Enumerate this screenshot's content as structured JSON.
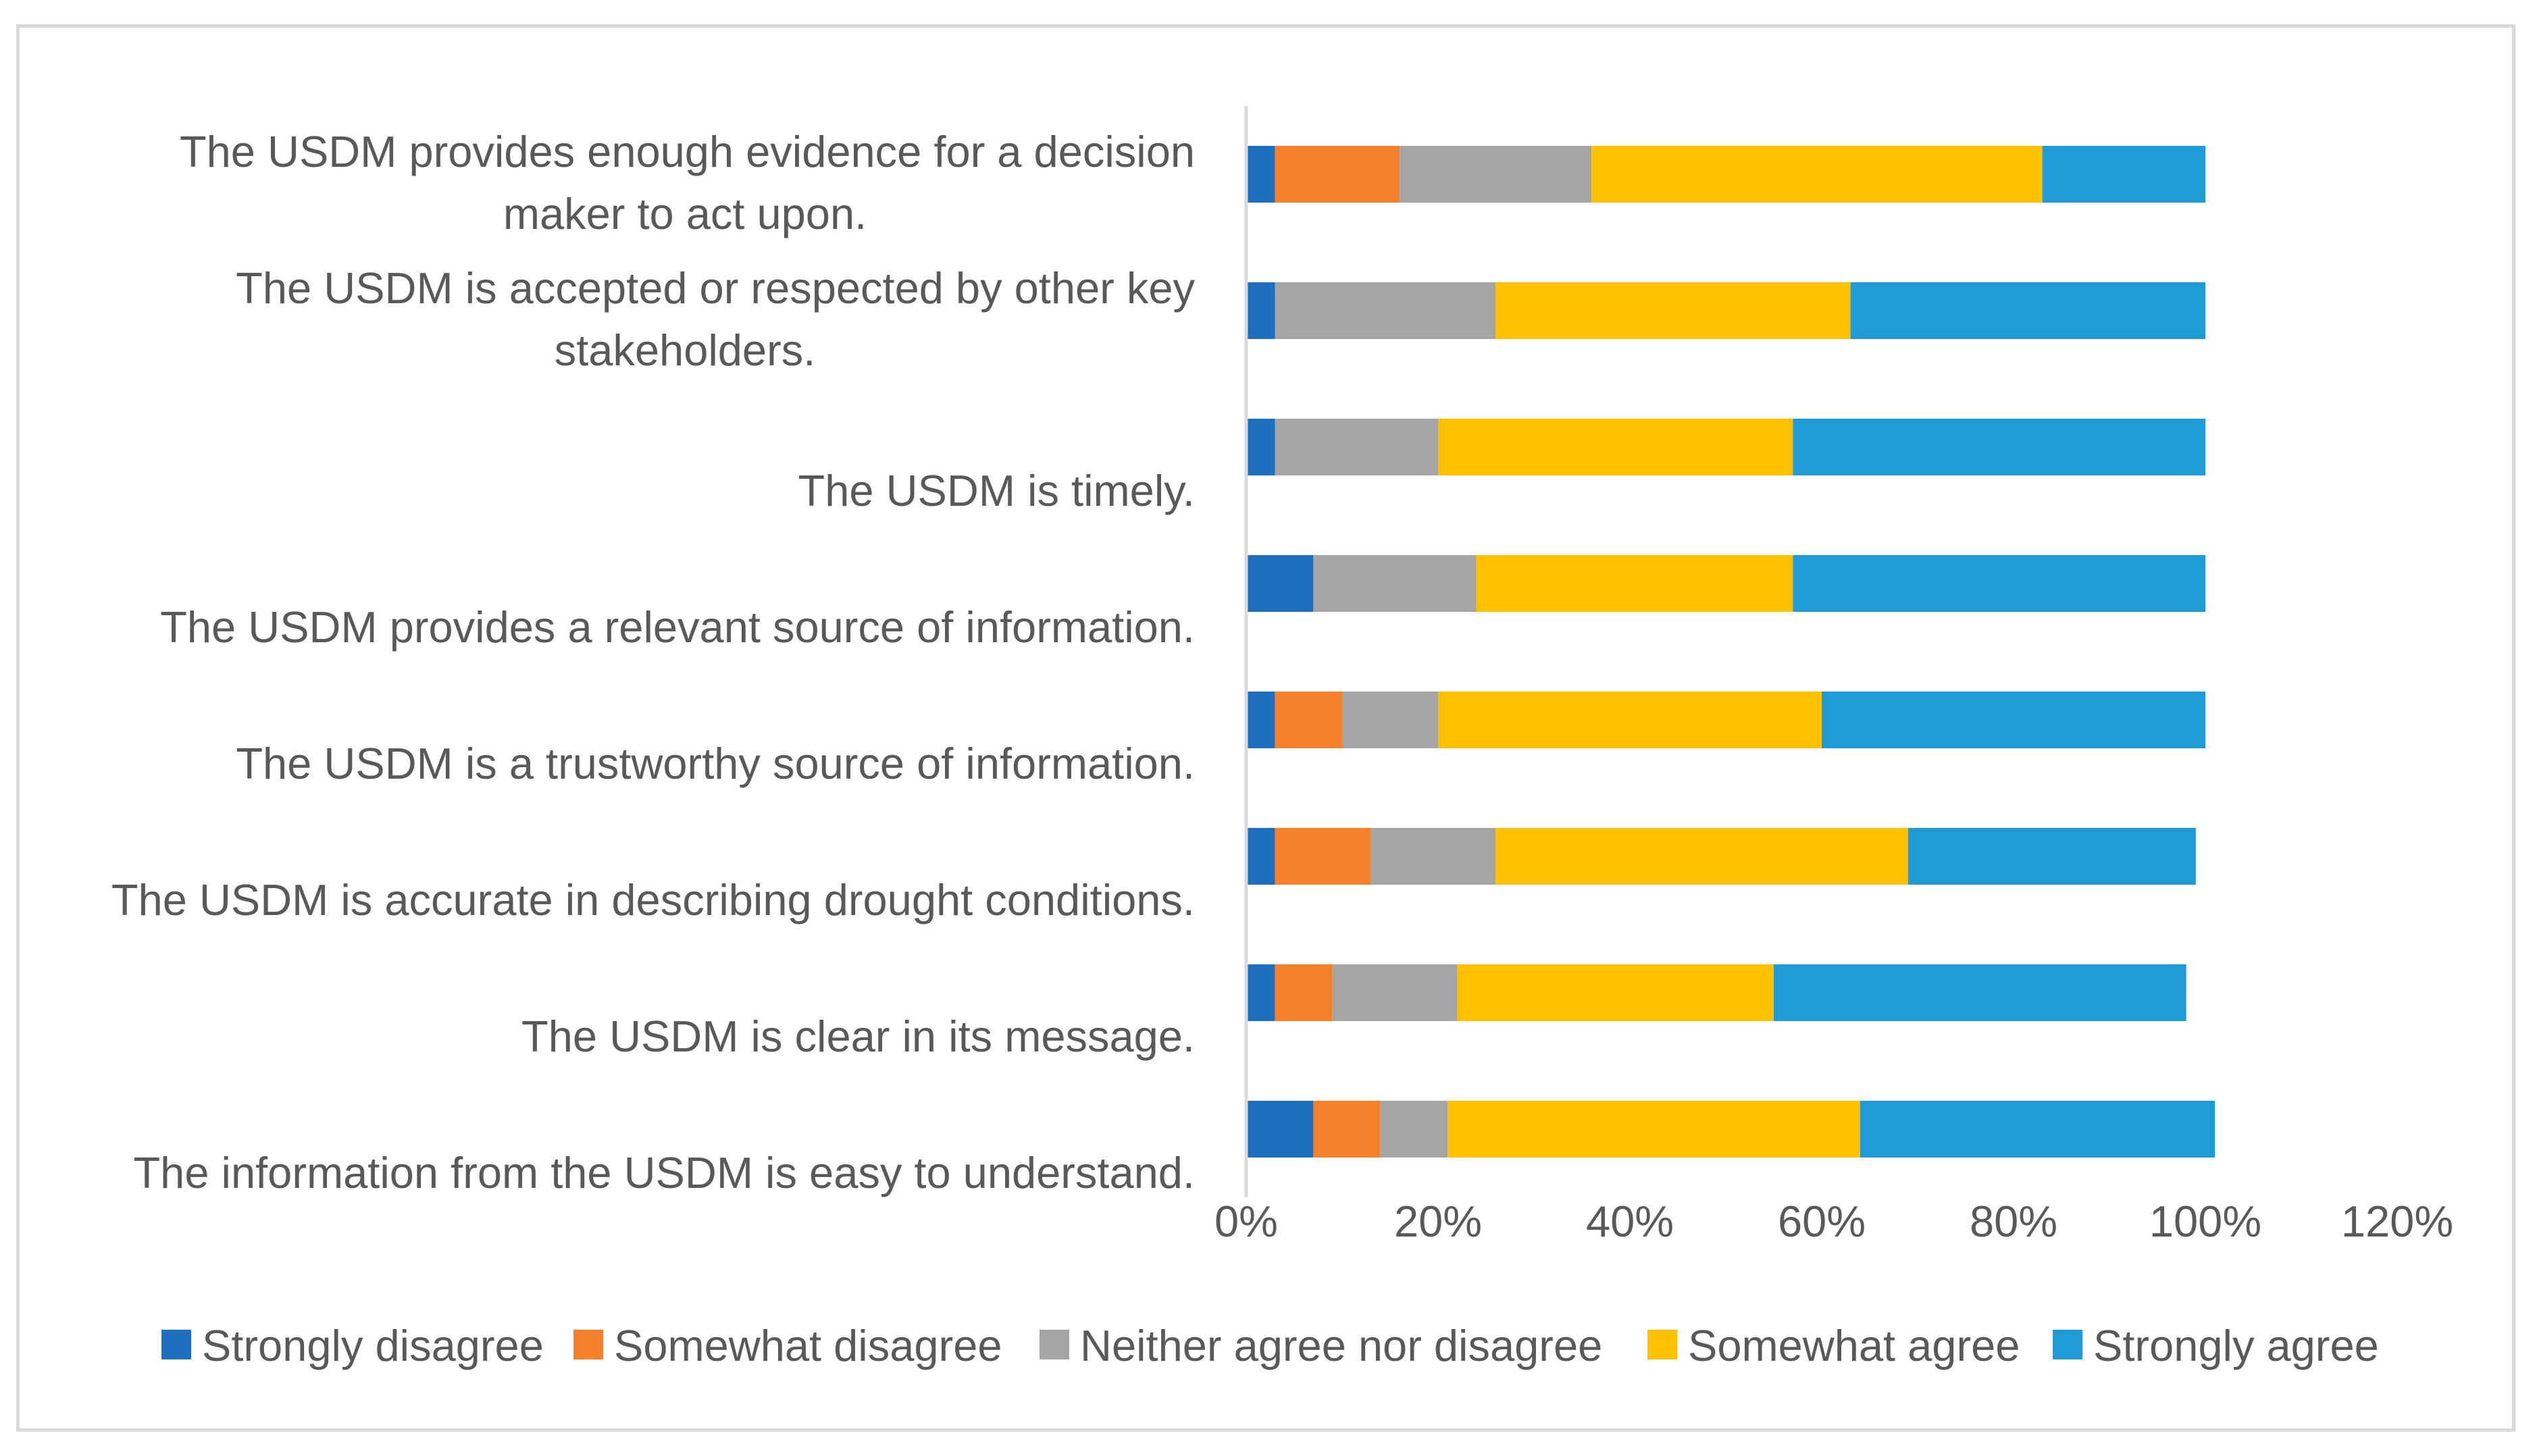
{
  "chart_data": {
    "type": "bar",
    "orientation": "horizontal",
    "stacked": true,
    "title": "",
    "xlabel": "",
    "ylabel": "",
    "xlim": [
      0,
      1.2
    ],
    "x_ticks": [
      0,
      0.2,
      0.4,
      0.6,
      0.8,
      1.0,
      1.2
    ],
    "x_tick_labels": [
      "0%",
      "20%",
      "40%",
      "60%",
      "80%",
      "100%",
      "120%"
    ],
    "grid": false,
    "legend_position": "bottom",
    "categories": [
      [
        "The USDM provides enough evidence for a decision",
        "maker to act upon."
      ],
      [
        "The USDM is accepted or respected by other key",
        "stakeholders."
      ],
      [
        "The USDM is timely."
      ],
      [
        "The USDM provides a relevant source of information."
      ],
      [
        "The USDM is a trustworthy source of information."
      ],
      [
        "The USDM is accurate in describing drought conditions."
      ],
      [
        "The USDM is clear in its message."
      ],
      [
        "The information from the USDM is easy to understand."
      ]
    ],
    "series": [
      {
        "name": "Strongly disagree",
        "color": "#1f6fbf",
        "values": [
          0.03,
          0.03,
          0.03,
          0.07,
          0.03,
          0.03,
          0.03,
          0.07
        ]
      },
      {
        "name": "Somewhat disagree",
        "color": "#f5812d",
        "values": [
          0.13,
          0.0,
          0.0,
          0.0,
          0.07,
          0.1,
          0.06,
          0.07
        ]
      },
      {
        "name": "Neither agree nor disagree",
        "color": "#a5a5a5",
        "values": [
          0.2,
          0.23,
          0.17,
          0.17,
          0.1,
          0.13,
          0.13,
          0.07
        ]
      },
      {
        "name": "Somewhat agree",
        "color": "#ffc000",
        "values": [
          0.47,
          0.37,
          0.37,
          0.33,
          0.4,
          0.43,
          0.33,
          0.43
        ]
      },
      {
        "name": "Strongly agree",
        "color": "#1f9bd7",
        "values": [
          0.17,
          0.37,
          0.43,
          0.43,
          0.4,
          0.3,
          0.43,
          0.37
        ]
      }
    ]
  }
}
